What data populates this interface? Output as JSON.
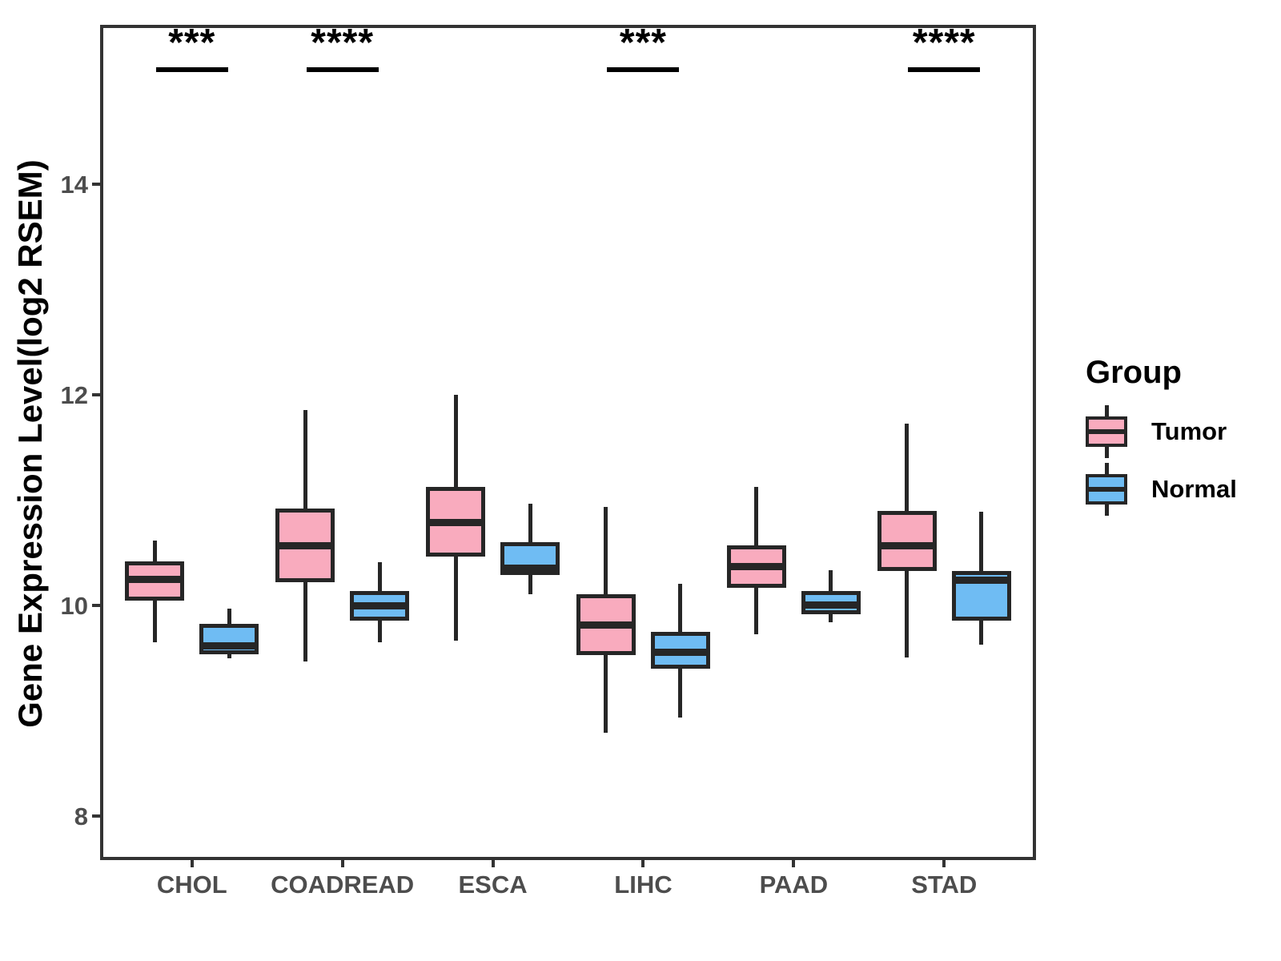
{
  "figure": {
    "y_axis_title": "Gene Expression Level(log2 RSEM)",
    "legend_title": "Group"
  },
  "chart_data": {
    "type": "boxplot",
    "title": "",
    "xlabel": "",
    "ylabel": "Gene Expression Level(log2 RSEM)",
    "categories": [
      "CHOL",
      "COADREAD",
      "ESCA",
      "LIHC",
      "PAAD",
      "STAD"
    ],
    "ylim": [
      7.6,
      15.5
    ],
    "yticks": [
      8,
      10,
      12,
      14
    ],
    "grid": false,
    "legend": {
      "title": "Group",
      "position": "right",
      "entries": [
        "Tumor",
        "Normal"
      ]
    },
    "series": [
      {
        "name": "Tumor",
        "color": "#F9ABBE",
        "boxes": [
          {
            "category": "CHOL",
            "min": 9.65,
            "q1": 10.05,
            "median": 10.25,
            "q3": 10.42,
            "max": 10.62
          },
          {
            "category": "COADREAD",
            "min": 9.47,
            "q1": 10.22,
            "median": 10.57,
            "q3": 10.92,
            "max": 11.86
          },
          {
            "category": "ESCA",
            "min": 9.67,
            "q1": 10.47,
            "median": 10.79,
            "q3": 11.13,
            "max": 12.0
          },
          {
            "category": "LIHC",
            "min": 8.79,
            "q1": 9.53,
            "median": 9.82,
            "q3": 10.11,
            "max": 10.94
          },
          {
            "category": "PAAD",
            "min": 9.73,
            "q1": 10.17,
            "median": 10.37,
            "q3": 10.57,
            "max": 11.13
          },
          {
            "category": "STAD",
            "min": 9.51,
            "q1": 10.33,
            "median": 10.57,
            "q3": 10.9,
            "max": 11.73
          }
        ]
      },
      {
        "name": "Normal",
        "color": "#6FBCF3",
        "boxes": [
          {
            "category": "CHOL",
            "min": 9.5,
            "q1": 9.54,
            "median": 9.62,
            "q3": 9.83,
            "max": 9.97
          },
          {
            "category": "COADREAD",
            "min": 9.65,
            "q1": 9.86,
            "median": 10.0,
            "q3": 10.14,
            "max": 10.41
          },
          {
            "category": "ESCA",
            "min": 10.11,
            "q1": 10.29,
            "median": 10.36,
            "q3": 10.6,
            "max": 10.97
          },
          {
            "category": "LIHC",
            "min": 8.94,
            "q1": 9.4,
            "median": 9.56,
            "q3": 9.75,
            "max": 10.21
          },
          {
            "category": "PAAD",
            "min": 9.84,
            "q1": 9.92,
            "median": 10.01,
            "q3": 10.14,
            "max": 10.34
          },
          {
            "category": "STAD",
            "min": 9.63,
            "q1": 9.86,
            "median": 10.24,
            "q3": 10.33,
            "max": 10.89
          }
        ]
      }
    ],
    "annotations": [
      {
        "category": "CHOL",
        "label": "***"
      },
      {
        "category": "COADREAD",
        "label": "****"
      },
      {
        "category": "LIHC",
        "label": "***"
      },
      {
        "category": "STAD",
        "label": "****"
      }
    ],
    "colors": {
      "tumor_fill": "#F9ABBE",
      "normal_fill": "#6FBCF3",
      "box_border": "#262626",
      "panel_border": "#333333",
      "axis_text": "#4d4d4d",
      "annotation": "#000000"
    }
  }
}
